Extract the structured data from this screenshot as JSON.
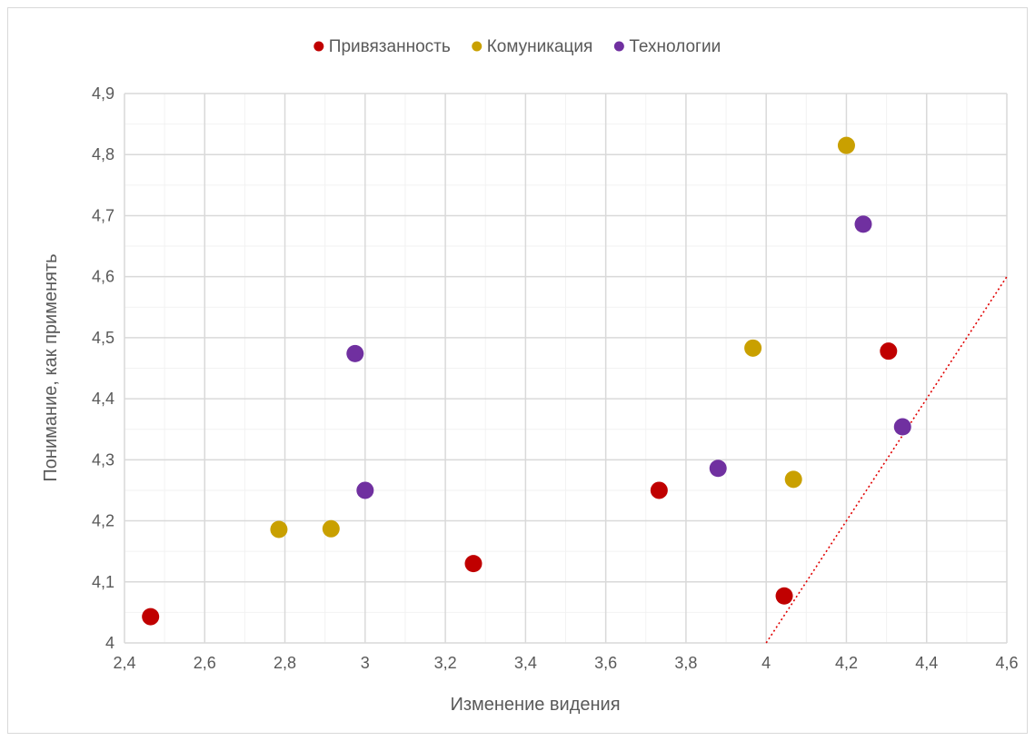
{
  "chart_data": {
    "type": "scatter",
    "title": "",
    "xlabel": "Изменение видения",
    "ylabel": "Понимание, как применять",
    "xlim": [
      2.4,
      4.6
    ],
    "ylim": [
      4.0,
      4.9
    ],
    "x_ticks": [
      2.4,
      2.6,
      2.8,
      3.0,
      3.2,
      3.4,
      3.6,
      3.8,
      4.0,
      4.2,
      4.4,
      4.6
    ],
    "x_tick_labels": [
      "2,4",
      "2,6",
      "2,8",
      "3",
      "3,2",
      "3,4",
      "3,6",
      "3,8",
      "4",
      "4,2",
      "4,4",
      "4,6"
    ],
    "y_ticks": [
      4.0,
      4.1,
      4.2,
      4.3,
      4.4,
      4.5,
      4.6,
      4.7,
      4.8,
      4.9
    ],
    "y_tick_labels": [
      "4",
      "4,1",
      "4,2",
      "4,3",
      "4,4",
      "4,5",
      "4,6",
      "4,7",
      "4,8",
      "4,9"
    ],
    "grid": true,
    "minor_grid": true,
    "legend_position": "top-center",
    "series": [
      {
        "name": "Привязанность",
        "color": "#C00000",
        "points": [
          {
            "x": 2.465,
            "y": 4.043
          },
          {
            "x": 3.27,
            "y": 4.13
          },
          {
            "x": 3.733,
            "y": 4.25
          },
          {
            "x": 4.045,
            "y": 4.077
          },
          {
            "x": 4.305,
            "y": 4.478
          }
        ]
      },
      {
        "name": "Комуникация",
        "color": "#C9A000",
        "points": [
          {
            "x": 2.785,
            "y": 4.186
          },
          {
            "x": 2.915,
            "y": 4.187
          },
          {
            "x": 3.967,
            "y": 4.483
          },
          {
            "x": 4.068,
            "y": 4.268
          },
          {
            "x": 4.2,
            "y": 4.815
          }
        ]
      },
      {
        "name": "Технологии",
        "color": "#7030A0",
        "points": [
          {
            "x": 2.975,
            "y": 4.474
          },
          {
            "x": 3.0,
            "y": 4.25
          },
          {
            "x": 3.88,
            "y": 4.286
          },
          {
            "x": 4.242,
            "y": 4.686
          },
          {
            "x": 4.34,
            "y": 4.354
          }
        ]
      }
    ],
    "reference_line": {
      "color": "#E00000",
      "style": "dotted",
      "from": {
        "x": 4.0,
        "y": 4.0
      },
      "to": {
        "x": 4.6,
        "y": 4.6
      }
    }
  },
  "colors": {
    "grid_major": "#D9D9D9",
    "grid_minor": "#F2F2F2",
    "axis_text": "#595959"
  }
}
